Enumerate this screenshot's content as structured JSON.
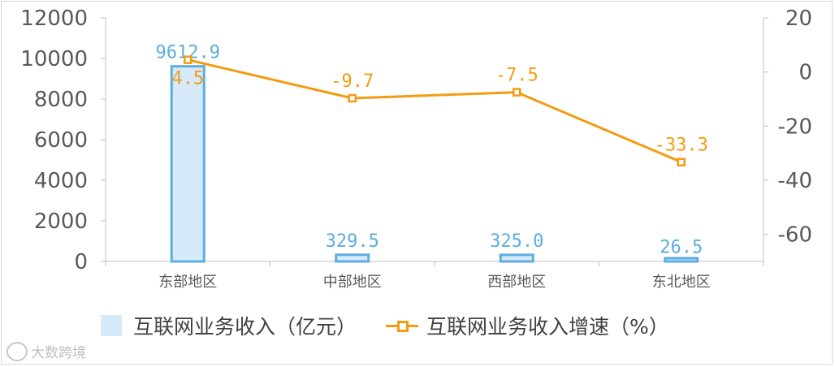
{
  "chart_data": {
    "type": "bar",
    "categories": [
      "东部地区",
      "中部地区",
      "西部地区",
      "东北地区"
    ],
    "series": [
      {
        "name": "互联网业务收入（亿元）",
        "type": "bar",
        "axis": "left",
        "values": [
          9612.9,
          329.5,
          325.0,
          26.5
        ],
        "labels": [
          "9612.9",
          "329.5",
          "325.0",
          "26.5"
        ],
        "color": "#d6eafa",
        "border_color": "#5dade2",
        "label_color": "#5dade2"
      },
      {
        "name": "互联网业务收入增速（%）",
        "type": "line",
        "axis": "right",
        "values": [
          4.5,
          -9.7,
          -7.5,
          -33.3
        ],
        "labels": [
          "4.5",
          "-9.7",
          "-7.5",
          "-33.3"
        ],
        "color": "#f39c12",
        "label_color": "#f39c12"
      }
    ],
    "ylim_left": [
      0,
      12000
    ],
    "yticks_left": [
      0,
      2000,
      4000,
      6000,
      8000,
      10000,
      12000
    ],
    "ylim_right": [
      -70,
      20
    ],
    "yticks_right": [
      -60,
      -40,
      -20,
      0,
      20
    ],
    "grid": false,
    "legend_position": "bottom"
  },
  "watermark": "大数跨境"
}
